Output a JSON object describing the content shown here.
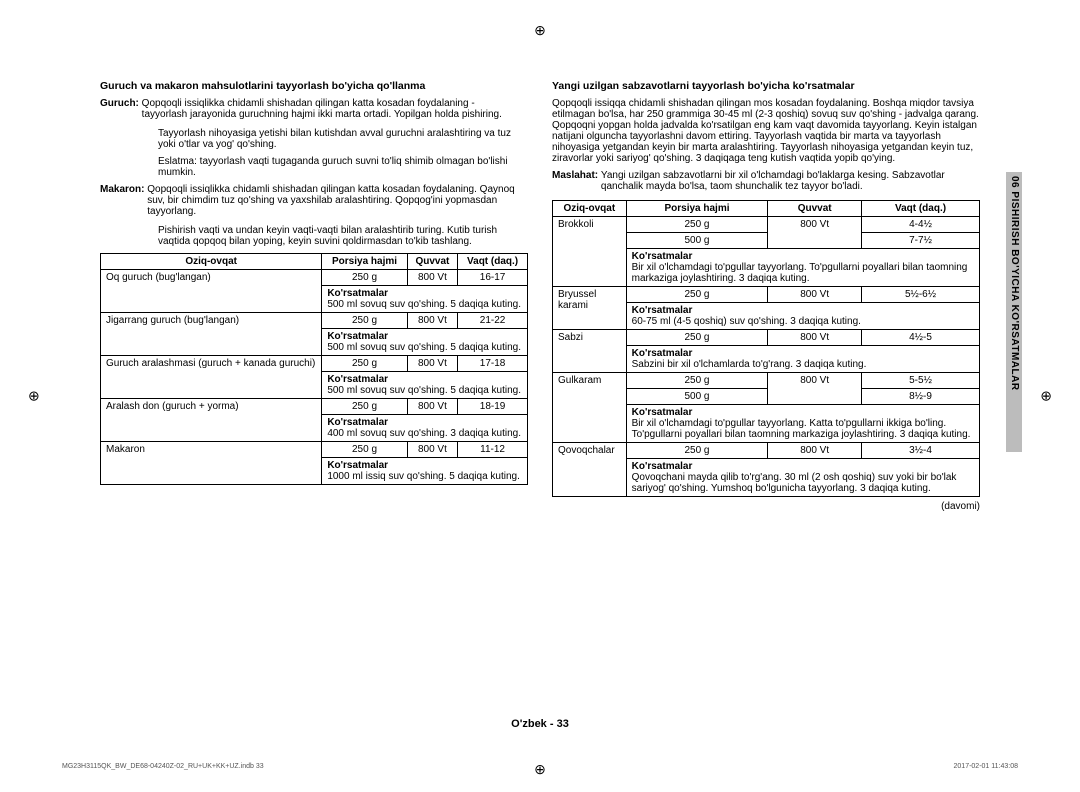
{
  "side_label": "06 PISHIRISH BO'YICHA KO'RSATMALAR",
  "footer_center": "O'zbek - 33",
  "footer_left": "MG23H3115QK_BW_DE68-04240Z-02_RU+UK+KK+UZ.indb   33",
  "footer_right": "2017-02-01   11:43:08",
  "crop_glyph": "⊕",
  "left": {
    "title": "Guruch va makaron mahsulotlarini tayyorlash bo'yicha qo'llanma",
    "guruch_label": "Guruch:",
    "guruch_text": "Qopqoqli issiqlikka chidamli shishadan qilingan katta kosadan foydalaning - tayyorlash jarayonida guruchning hajmi ikki marta ortadi. Yopilgan holda pishiring.",
    "guruch_p2": "Tayyorlash nihoyasiga yetishi bilan kutishdan avval guruchni aralashtiring va tuz yoki o'tlar va yog' qo'shing.",
    "guruch_p3": "Eslatma: tayyorlash vaqti tugaganda guruch suvni to'liq shimib olmagan bo'lishi mumkin.",
    "makaron_label": "Makaron:",
    "makaron_text": "Qopqoqli issiqlikka chidamli shishadan qilingan katta kosadan foydalaning. Qaynoq suv, bir chimdim tuz qo'shing va yaxshilab aralashtiring. Qopqog'ini yopmasdan tayyorlang.",
    "makaron_p2": "Pishirish vaqti va undan keyin vaqti-vaqti bilan aralashtirib turing. Kutib turish vaqtida qopqoq bilan yoping, keyin suvini qoldirmasdan to'kib tashlang.",
    "th1": "Oziq-ovqat",
    "th2": "Porsiya hajmi",
    "th3": "Quvvat",
    "th4": "Vaqt (daq.)",
    "instr_label": "Ko'rsatmalar",
    "rows": [
      {
        "name": "Oq guruch (bug'langan)",
        "portion": "250 g",
        "power": "800 Vt",
        "time": "16-17",
        "instr": "500 ml sovuq suv qo'shing. 5 daqiqa kuting."
      },
      {
        "name": "Jigarrang guruch (bug'langan)",
        "portion": "250 g",
        "power": "800 Vt",
        "time": "21-22",
        "instr": "500 ml sovuq suv qo'shing. 5 daqiqa kuting."
      },
      {
        "name": "Guruch aralashmasi (guruch + kanada guruchi)",
        "portion": "250 g",
        "power": "800 Vt",
        "time": "17-18",
        "instr": "500 ml sovuq suv qo'shing. 5 daqiqa kuting."
      },
      {
        "name": "Aralash don (guruch + yorma)",
        "portion": "250 g",
        "power": "800 Vt",
        "time": "18-19",
        "instr": "400 ml sovuq suv qo'shing. 3 daqiqa kuting."
      },
      {
        "name": "Makaron",
        "portion": "250 g",
        "power": "800 Vt",
        "time": "11-12",
        "instr": "1000 ml issiq suv qo'shing. 5 daqiqa kuting."
      }
    ]
  },
  "right": {
    "title": "Yangi uzilgan sabzavotlarni tayyorlash bo'yicha ko'rsatmalar",
    "p1": "Qopqoqli issiqqa chidamli shishadan qilingan mos kosadan foydalaning. Boshqa miqdor tavsiya etilmagan bo'lsa, har 250 grammiga 30-45 ml (2-3 qoshiq) sovuq suv qo'shing - jadvalga qarang. Qopqoqni yopgan holda jadvalda ko'rsatilgan eng kam vaqt davomida tayyorlang. Keyin istalgan natijani olguncha tayyorlashni davom ettiring. Tayyorlash vaqtida bir marta va tayyorlash nihoyasiga yetgandan keyin bir marta aralashtiring. Tayyorlash nihoyasiga yetgandan keyin tuz, ziravorlar yoki sariyog' qo'shing. 3 daqiqaga teng kutish vaqtida yopib qo'ying.",
    "m_label": "Maslahat:",
    "m_text": "Yangi uzilgan sabzavotlarni bir xil o'lchamdagi bo'laklarga kesing. Sabzavotlar qanchalik mayda bo'lsa, taom shunchalik tez tayyor bo'ladi.",
    "th1": "Oziq-ovqat",
    "th2": "Porsiya hajmi",
    "th3": "Quvvat",
    "th4": "Vaqt (daq.)",
    "instr_label": "Ko'rsatmalar",
    "davomi": "(davomi)",
    "rows": [
      {
        "name": "Brokkoli",
        "portions": [
          "250 g",
          "500 g"
        ],
        "power": "800 Vt",
        "times": [
          "4-4½",
          "7-7½"
        ],
        "instr": "Bir xil o'lchamdagi to'pgullar tayyorlang. To'pgullarni poyallari bilan taomning markaziga joylashtiring. 3 daqiqa kuting."
      },
      {
        "name": "Bryussel karami",
        "portions": [
          "250 g"
        ],
        "power": "800 Vt",
        "times": [
          "5½-6½"
        ],
        "instr": "60-75 ml (4-5 qoshiq) suv qo'shing. 3 daqiqa kuting."
      },
      {
        "name": "Sabzi",
        "portions": [
          "250 g"
        ],
        "power": "800 Vt",
        "times": [
          "4½-5"
        ],
        "instr": "Sabzini bir xil o'lchamlarda to'g'rang. 3 daqiqa kuting."
      },
      {
        "name": "Gulkaram",
        "portions": [
          "250 g",
          "500 g"
        ],
        "power": "800 Vt",
        "times": [
          "5-5½",
          "8½-9"
        ],
        "instr": "Bir xil o'lchamdagi to'pgullar tayyorlang. Katta to'pgullarni ikkiga bo'ling. To'pgullarni poyallari bilan taomning markaziga joylashtiring. 3 daqiqa kuting."
      },
      {
        "name": "Qovoqchalar",
        "portions": [
          "250 g"
        ],
        "power": "800 Vt",
        "times": [
          "3½-4"
        ],
        "instr": "Qovoqchani mayda qilib to'rg'ang. 30 ml (2 osh qoshiq) suv yoki bir bo'lak sariyog' qo'shing. Yumshoq bo'lgunicha tayyorlang. 3 daqiqa kuting."
      }
    ]
  }
}
